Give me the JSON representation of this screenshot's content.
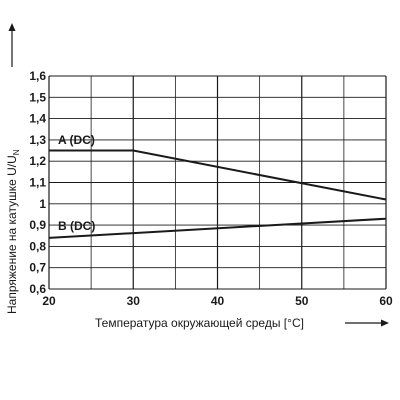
{
  "chart_data": {
    "type": "line",
    "xlabel": "Температура окружающей среды [°C]",
    "ylabel": "Напряжение на катушке U/U",
    "ylabel_subscript": "N",
    "xlim": [
      20,
      60
    ],
    "ylim": [
      0.6,
      1.6
    ],
    "x_ticks": [
      "20",
      "30",
      "40",
      "50",
      "60"
    ],
    "y_ticks": [
      "0,6",
      "0,7",
      "0,8",
      "0,9",
      "1",
      "1,1",
      "1,2",
      "1,3",
      "1,4",
      "1,5",
      "1,6"
    ],
    "x_tick_values": [
      20,
      30,
      40,
      50,
      60
    ],
    "y_tick_values": [
      0.6,
      0.7,
      0.8,
      0.9,
      1.0,
      1.1,
      1.2,
      1.3,
      1.4,
      1.5,
      1.6
    ],
    "grid": true,
    "series": [
      {
        "name": "A (DC)",
        "x": [
          20,
          30,
          60
        ],
        "y": [
          1.25,
          1.25,
          1.02
        ]
      },
      {
        "name": "B (DC)",
        "x": [
          20,
          60
        ],
        "y": [
          0.84,
          0.93
        ]
      }
    ],
    "colors": {
      "line": "#1a1a1a",
      "grid": "#1a1a1a"
    }
  }
}
